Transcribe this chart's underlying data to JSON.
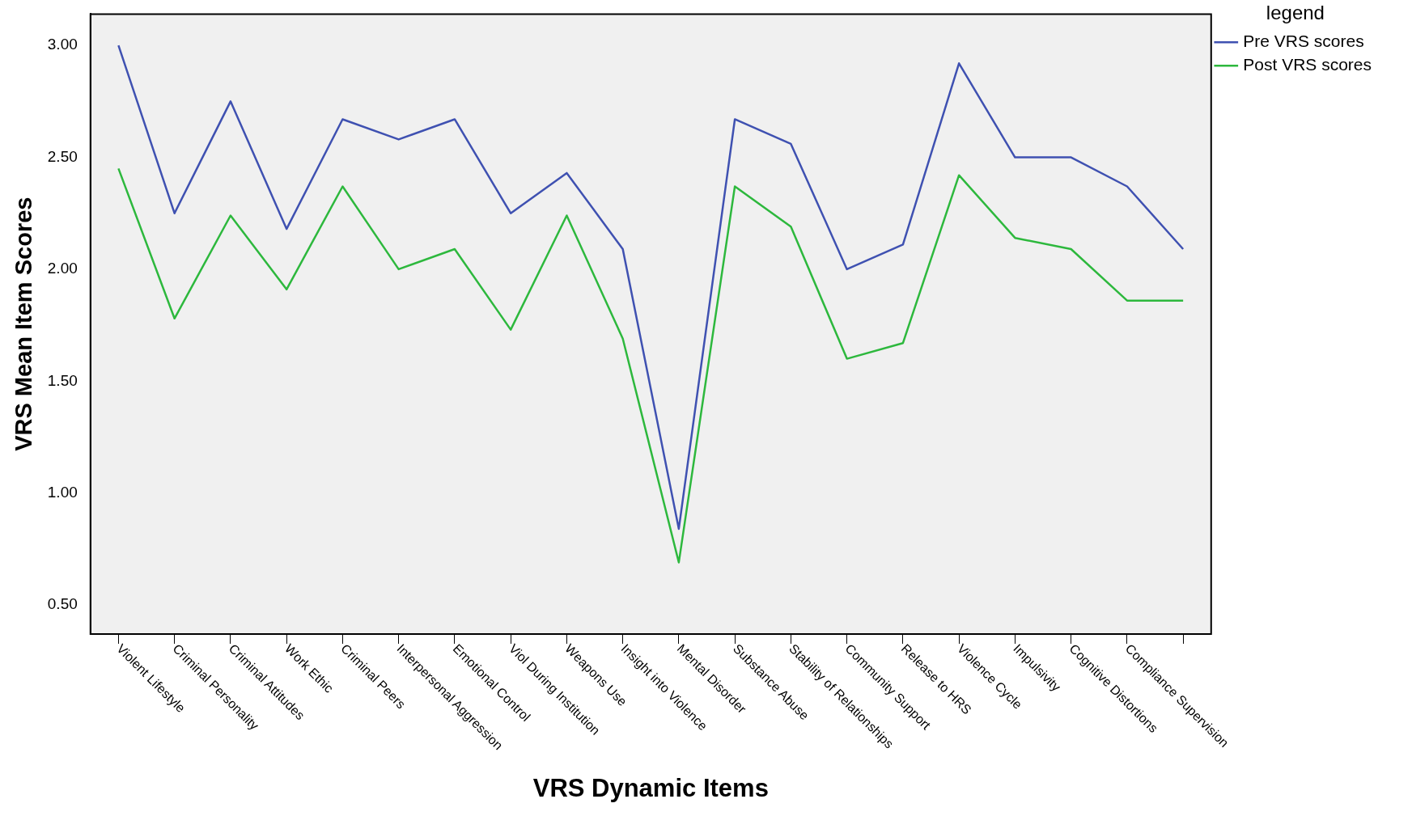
{
  "chart_data": {
    "type": "line",
    "xlabel": "VRS Dynamic Items",
    "ylabel": "VRS Mean Item Scores",
    "legend_title": "legend",
    "legend": "top right",
    "marker": "none",
    "categories": [
      "Violent Lifestyle",
      "Criminal Personality",
      "Criminal Attitudes",
      "Work Ethic",
      "Criminal Peers",
      "Interpersonal Aggression",
      "Emotional Control",
      "Viol During Institution",
      "Weapons Use",
      "Insight into Violence",
      "Mental Disorder",
      "Substance Abuse",
      "Stability of Relationships",
      "Community Support",
      "Release to HRS",
      "Violence Cycle",
      "Impulsivity",
      "Cognitive Distortions",
      "Compliance Supervision",
      null
    ],
    "ylim": [
      0.37,
      3.14
    ],
    "yticks": [
      {
        "value": 0.5,
        "label": "0.50"
      },
      {
        "value": 1,
        "label": "1.00"
      },
      {
        "value": 1.5,
        "label": "1.50"
      },
      {
        "value": 2,
        "label": "2.00"
      },
      {
        "value": 2.5,
        "label": "2.50"
      },
      {
        "value": 3,
        "label": "3.00"
      }
    ],
    "series": [
      {
        "name": "Pre VRS scores",
        "color": "#3f51b1",
        "values": [
          3.0,
          2.25,
          2.75,
          2.18,
          2.67,
          2.58,
          2.67,
          2.25,
          2.43,
          2.09,
          0.84,
          2.67,
          2.56,
          2.0,
          2.11,
          2.92,
          2.5,
          2.5,
          2.37,
          2.09
        ]
      },
      {
        "name": "Post VRS scores",
        "color": "#2db83d",
        "values": [
          2.45,
          1.78,
          2.24,
          1.91,
          2.37,
          2.0,
          2.09,
          1.73,
          2.24,
          1.69,
          0.69,
          2.37,
          2.19,
          1.6,
          1.67,
          2.42,
          2.14,
          2.09,
          1.86,
          1.86
        ]
      }
    ]
  }
}
